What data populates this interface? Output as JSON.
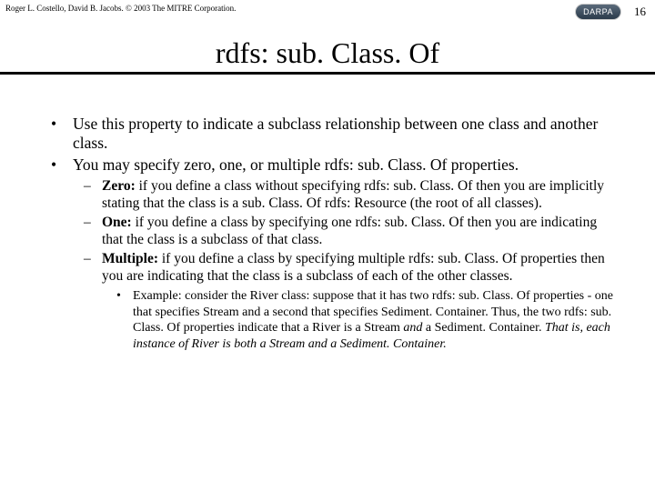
{
  "header": {
    "copyright": "Roger L. Costello, David B. Jacobs. © 2003 The MITRE Corporation.",
    "page_number": "16",
    "badge": "DARPA"
  },
  "title": "rdfs: sub. Class. Of",
  "bullets": {
    "b1": "Use this property to indicate a subclass relationship between one class and another class.",
    "b2": "You may specify zero, one, or multiple rdfs: sub. Class. Of properties.",
    "zero_label": "Zero:",
    "zero_text": " if you define a class without specifying rdfs: sub. Class. Of then you are implicitly stating that the class is a sub. Class. Of rdfs: Resource (the root of all classes).",
    "one_label": "One:",
    "one_text": " if you define a class by specifying one rdfs: sub. Class. Of then you are indicating that the class is a subclass of that class.",
    "multi_label": "Multiple:",
    "multi_text": " if you define a class by specifying multiple rdfs: sub. Class. Of properties then you are indicating that the class is a subclass of each of the other classes.",
    "example_lead": "Example: consider the River class: suppose that it has two rdfs: sub. Class. Of properties - one that specifies Stream and a second that specifies Sediment. Container.  Thus, the two rdfs: sub. Class. Of properties indicate that a River is a Stream ",
    "example_and": "and",
    "example_mid": " a Sediment. Container. ",
    "example_italic": "That is, each instance of River is both a Stream and a Sediment. Container."
  }
}
